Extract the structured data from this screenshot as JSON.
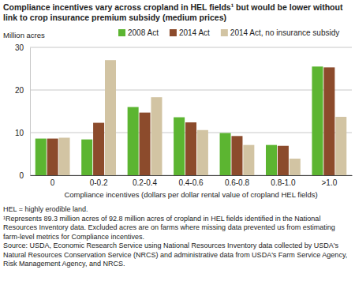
{
  "chart_data": {
    "type": "bar",
    "title": "Compliance incentives vary across cropland in HEL fields¹ but would be lower without link to crop insurance premium subsidy (medium prices)",
    "y_label": "Million acres",
    "x_label": "Compliance incentives (dollars per dollar rental value of cropland HEL fields)",
    "categories": [
      "0",
      "0-0.2",
      "0.2-0.4",
      "0.4-0.6",
      "0.6-0.8",
      "0.8-1.0",
      ">1.0"
    ],
    "series": [
      {
        "name": "2008 Act",
        "color": "#5cb531",
        "values": [
          8.6,
          8.4,
          16.0,
          13.6,
          9.9,
          7.1,
          25.5
        ]
      },
      {
        "name": "2014 Act",
        "color": "#8c4b2c",
        "values": [
          8.6,
          12.3,
          14.7,
          12.4,
          9.2,
          6.9,
          25.3
        ]
      },
      {
        "name": "2014 Act, no insurance subsidy",
        "color": "#d2c4a3",
        "values": [
          8.8,
          27.0,
          18.3,
          10.6,
          7.1,
          3.9,
          13.7
        ]
      }
    ],
    "ylim": [
      0,
      30
    ],
    "yticks": [
      0,
      10,
      20,
      30
    ],
    "grid": true,
    "legend": "top",
    "notes": [
      "HEL = highly erodible land.",
      "¹Represents 89.3 million acres of 92.8 million acres of cropland in HEL fields identified in the National Resources Inventory data. Excluded acres are on farms where missing data prevented us from estimating farm-level metrics for Compliance incentives.",
      "Source: USDA, Economic Research Service using National Resources Inventory data collected by USDA's Natural Resources Conservation Service (NRCS) and administrative data from USDA's Farm Service Agency, Risk Management Agency, and NRCS."
    ]
  }
}
